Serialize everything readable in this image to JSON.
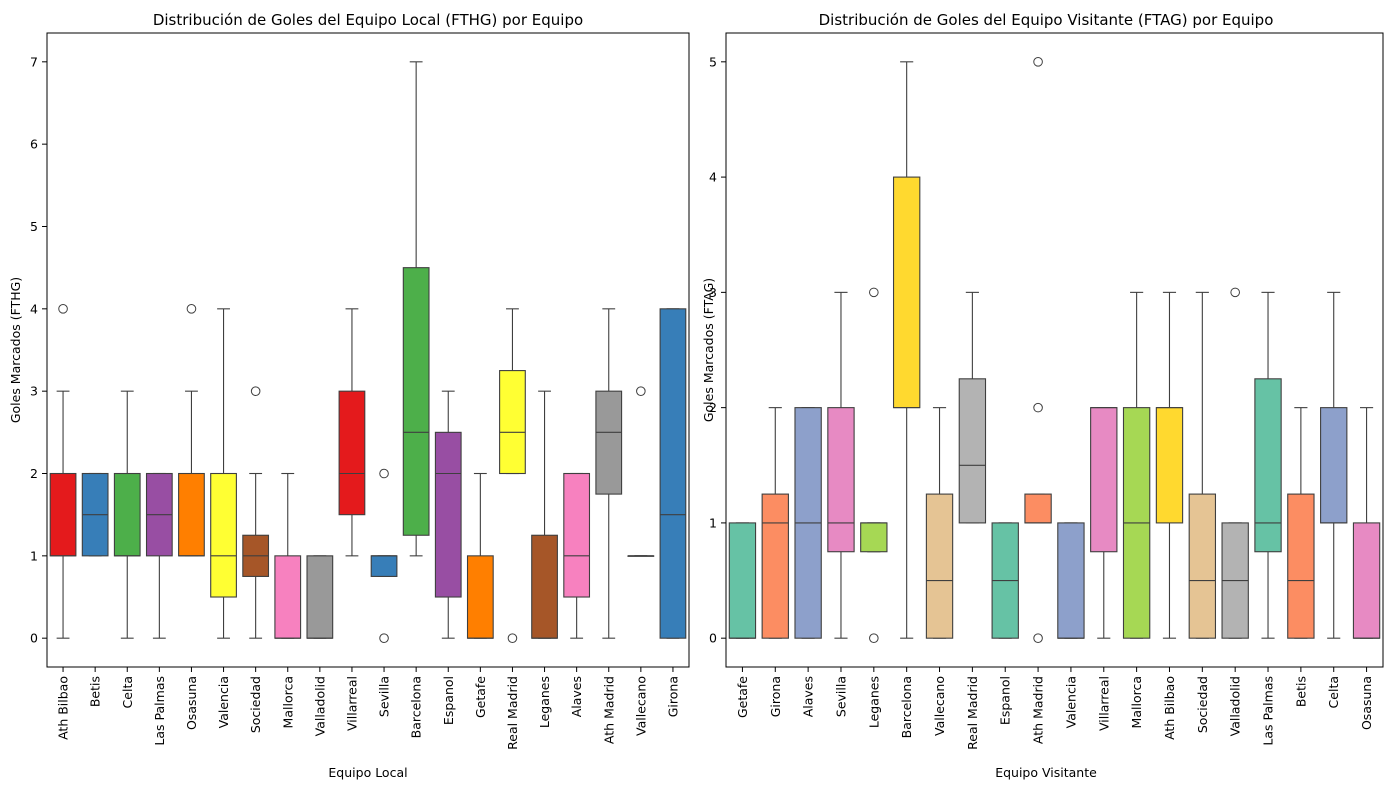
{
  "chart_data": [
    {
      "type": "box",
      "title": "Distribución de Goles del Equipo Local (FTHG) por Equipo",
      "xlabel": "Equipo Local",
      "ylabel": "Goles Marcados (FTHG)",
      "ylim": [
        -0.35,
        7.35
      ],
      "yticks": [
        0,
        1,
        2,
        3,
        4,
        5,
        6,
        7
      ],
      "palette": [
        "#e41a1c",
        "#377eb8",
        "#4daf4a",
        "#984ea3",
        "#ff7f00",
        "#ffff33",
        "#a65628",
        "#f781bf",
        "#999999"
      ],
      "categories": [
        "Ath Bilbao",
        "Betis",
        "Celta",
        "Las Palmas",
        "Osasuna",
        "Valencia",
        "Sociedad",
        "Mallorca",
        "Valladolid",
        "Villarreal",
        "Sevilla",
        "Barcelona",
        "Espanol",
        "Getafe",
        "Real Madrid",
        "Leganes",
        "Alaves",
        "Ath Madrid",
        "Vallecano",
        "Girona"
      ],
      "boxes": [
        {
          "q1": 1,
          "median": 1,
          "q3": 2,
          "whislo": 0,
          "whishi": 3,
          "fliers": [
            4
          ]
        },
        {
          "q1": 1,
          "median": 1.5,
          "q3": 2,
          "whislo": 1,
          "whishi": 2,
          "fliers": []
        },
        {
          "q1": 1,
          "median": 1,
          "q3": 2,
          "whislo": 0,
          "whishi": 3,
          "fliers": []
        },
        {
          "q1": 1,
          "median": 1.5,
          "q3": 2,
          "whislo": 0,
          "whishi": 2,
          "fliers": []
        },
        {
          "q1": 1,
          "median": 1,
          "q3": 2,
          "whislo": 1,
          "whishi": 3,
          "fliers": [
            4
          ]
        },
        {
          "q1": 0.5,
          "median": 1,
          "q3": 2,
          "whislo": 0,
          "whishi": 4,
          "fliers": []
        },
        {
          "q1": 0.75,
          "median": 1,
          "q3": 1.25,
          "whislo": 0,
          "whishi": 2,
          "fliers": [
            3
          ]
        },
        {
          "q1": 0,
          "median": 0,
          "q3": 1,
          "whislo": 0,
          "whishi": 2,
          "fliers": []
        },
        {
          "q1": 0,
          "median": 0,
          "q3": 1,
          "whislo": 0,
          "whishi": 1,
          "fliers": []
        },
        {
          "q1": 1.5,
          "median": 2,
          "q3": 3,
          "whislo": 1,
          "whishi": 4,
          "fliers": []
        },
        {
          "q1": 0.75,
          "median": 1,
          "q3": 1,
          "whislo": 0.75,
          "whishi": 1,
          "fliers": [
            0,
            2
          ]
        },
        {
          "q1": 1.25,
          "median": 2.5,
          "q3": 4.5,
          "whislo": 1,
          "whishi": 7,
          "fliers": []
        },
        {
          "q1": 0.5,
          "median": 2,
          "q3": 2.5,
          "whislo": 0,
          "whishi": 3,
          "fliers": []
        },
        {
          "q1": 0,
          "median": 0,
          "q3": 1,
          "whislo": 0,
          "whishi": 2,
          "fliers": []
        },
        {
          "q1": 2,
          "median": 2.5,
          "q3": 3.25,
          "whislo": 2,
          "whishi": 4,
          "fliers": [
            0
          ]
        },
        {
          "q1": 0,
          "median": 0,
          "q3": 1.25,
          "whislo": 0,
          "whishi": 3,
          "fliers": []
        },
        {
          "q1": 0.5,
          "median": 1,
          "q3": 2,
          "whislo": 0,
          "whishi": 2,
          "fliers": []
        },
        {
          "q1": 1.75,
          "median": 2.5,
          "q3": 3,
          "whislo": 0,
          "whishi": 4,
          "fliers": []
        },
        {
          "q1": 1,
          "median": 1,
          "q3": 1,
          "whislo": 1,
          "whishi": 1,
          "fliers": [
            3
          ]
        },
        {
          "q1": 0,
          "median": 1.5,
          "q3": 4,
          "whislo": 0,
          "whishi": 4,
          "fliers": []
        }
      ]
    },
    {
      "type": "box",
      "title": "Distribución de Goles del Equipo Visitante (FTAG) por Equipo",
      "xlabel": "Equipo Visitante",
      "ylabel": "Goles Marcados (FTAG)",
      "ylim": [
        -0.25,
        5.25
      ],
      "yticks": [
        0,
        1,
        2,
        3,
        4,
        5
      ],
      "palette": [
        "#66c2a5",
        "#fc8d62",
        "#8da0cb",
        "#e78ac3",
        "#a6d854",
        "#ffd92f",
        "#e5c494",
        "#b3b3b3"
      ],
      "categories": [
        "Getafe",
        "Girona",
        "Alaves",
        "Sevilla",
        "Leganes",
        "Barcelona",
        "Vallecano",
        "Real Madrid",
        "Espanol",
        "Ath Madrid",
        "Valencia",
        "Villarreal",
        "Mallorca",
        "Ath Bilbao",
        "Sociedad",
        "Valladolid",
        "Las Palmas",
        "Betis",
        "Celta",
        "Osasuna"
      ],
      "boxes": [
        {
          "q1": 0,
          "median": 0,
          "q3": 1,
          "whislo": 0,
          "whishi": 1,
          "fliers": []
        },
        {
          "q1": 0,
          "median": 1,
          "q3": 1.25,
          "whislo": 0,
          "whishi": 2,
          "fliers": []
        },
        {
          "q1": 0,
          "median": 1,
          "q3": 2,
          "whislo": 0,
          "whishi": 2,
          "fliers": []
        },
        {
          "q1": 0.75,
          "median": 1,
          "q3": 2,
          "whislo": 0,
          "whishi": 3,
          "fliers": []
        },
        {
          "q1": 0.75,
          "median": 1,
          "q3": 1,
          "whislo": 0.75,
          "whishi": 1,
          "fliers": [
            0,
            3
          ]
        },
        {
          "q1": 2,
          "median": 2,
          "q3": 4,
          "whislo": 0,
          "whishi": 5,
          "fliers": []
        },
        {
          "q1": 0,
          "median": 0.5,
          "q3": 1.25,
          "whislo": 0,
          "whishi": 2,
          "fliers": []
        },
        {
          "q1": 1,
          "median": 1.5,
          "q3": 2.25,
          "whislo": 1,
          "whishi": 3,
          "fliers": []
        },
        {
          "q1": 0,
          "median": 0.5,
          "q3": 1,
          "whislo": 0,
          "whishi": 1,
          "fliers": []
        },
        {
          "q1": 1,
          "median": 1,
          "q3": 1.25,
          "whislo": 1,
          "whishi": 1.25,
          "fliers": [
            0,
            2,
            5
          ]
        },
        {
          "q1": 0,
          "median": 0,
          "q3": 1,
          "whislo": 0,
          "whishi": 1,
          "fliers": []
        },
        {
          "q1": 0.75,
          "median": 2,
          "q3": 2,
          "whislo": 0,
          "whishi": 2,
          "fliers": []
        },
        {
          "q1": 0,
          "median": 1,
          "q3": 2,
          "whislo": 0,
          "whishi": 3,
          "fliers": []
        },
        {
          "q1": 1,
          "median": 2,
          "q3": 2,
          "whislo": 0,
          "whishi": 3,
          "fliers": []
        },
        {
          "q1": 0,
          "median": 0.5,
          "q3": 1.25,
          "whislo": 0,
          "whishi": 3,
          "fliers": []
        },
        {
          "q1": 0,
          "median": 0.5,
          "q3": 1,
          "whislo": 0,
          "whishi": 1,
          "fliers": [
            3
          ]
        },
        {
          "q1": 0.75,
          "median": 1,
          "q3": 2.25,
          "whislo": 0,
          "whishi": 3,
          "fliers": []
        },
        {
          "q1": 0,
          "median": 0.5,
          "q3": 1.25,
          "whislo": 0,
          "whishi": 2,
          "fliers": []
        },
        {
          "q1": 1,
          "median": 1,
          "q3": 2,
          "whislo": 0,
          "whishi": 3,
          "fliers": []
        },
        {
          "q1": 0,
          "median": 0,
          "q3": 1,
          "whislo": 0,
          "whishi": 2,
          "fliers": []
        }
      ]
    }
  ]
}
